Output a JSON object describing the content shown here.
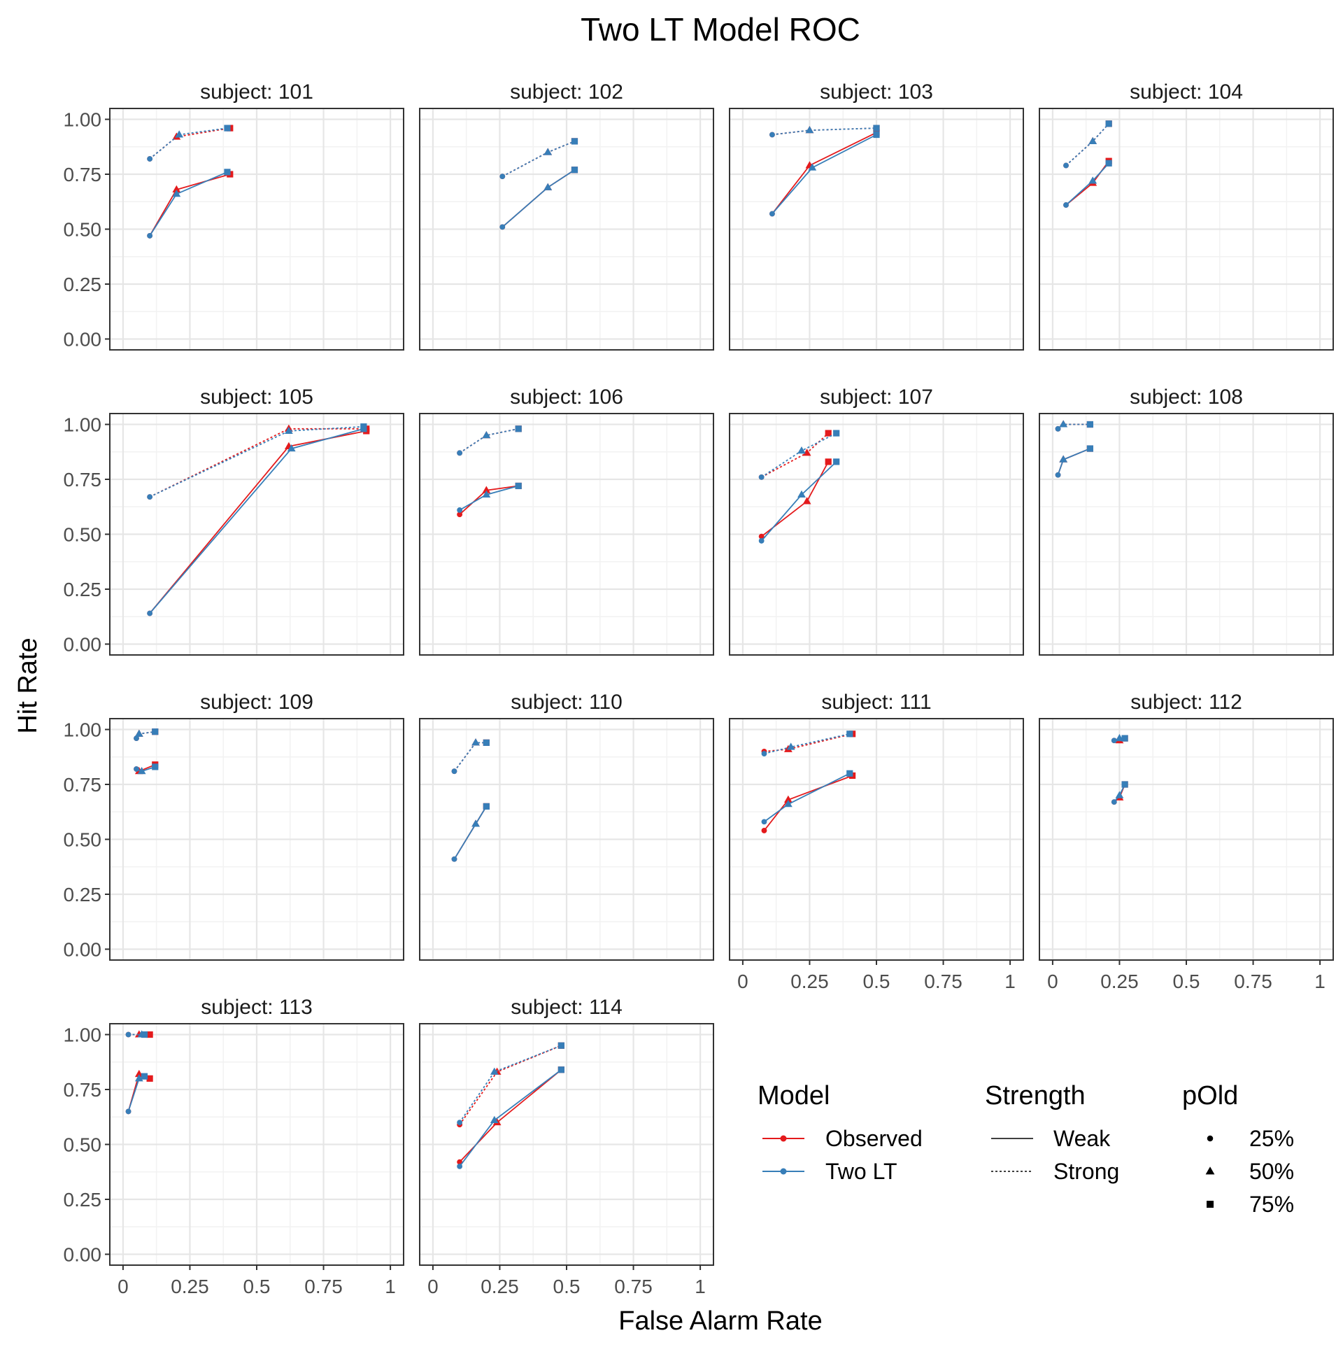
{
  "title": "Two LT Model ROC",
  "xlabel": "False Alarm Rate",
  "ylabel": "Hit Rate",
  "colors": {
    "observed": "#E41A1C",
    "two_lt": "#377EB8"
  },
  "facet_prefix": "subject: ",
  "legend": {
    "model": {
      "title": "Model",
      "items": [
        "Observed",
        "Two LT"
      ]
    },
    "strength": {
      "title": "Strength",
      "items": [
        "Weak",
        "Strong"
      ]
    },
    "pold": {
      "title": "pOld",
      "items": [
        "25%",
        "50%",
        "75%"
      ]
    }
  },
  "chart_data": {
    "type": "line",
    "x_ticks": [
      "0",
      "0.25",
      "0.5",
      "0.75",
      "1"
    ],
    "y_ticks": [
      "0.00",
      "0.25",
      "0.50",
      "0.75",
      "1.00"
    ],
    "xlim": [
      0,
      1
    ],
    "ylim": [
      0,
      1
    ],
    "grid": true,
    "legend_position": "bottom-right",
    "series_order": [
      "Observed",
      "Two LT"
    ],
    "strength_order": [
      "Weak",
      "Strong"
    ],
    "pold_levels": [
      "25%",
      "50%",
      "75%"
    ],
    "facets": [
      {
        "subject": "101",
        "Observed": {
          "Weak": [
            [
              0.1,
              0.47
            ],
            [
              0.2,
              0.68
            ],
            [
              0.4,
              0.75
            ]
          ],
          "Strong": [
            [
              0.1,
              0.82
            ],
            [
              0.2,
              0.92
            ],
            [
              0.4,
              0.96
            ]
          ]
        },
        "Two LT": {
          "Weak": [
            [
              0.1,
              0.47
            ],
            [
              0.2,
              0.66
            ],
            [
              0.39,
              0.76
            ]
          ],
          "Strong": [
            [
              0.1,
              0.82
            ],
            [
              0.21,
              0.93
            ],
            [
              0.39,
              0.96
            ]
          ]
        }
      },
      {
        "subject": "102",
        "Observed": {
          "Weak": [
            [
              0.26,
              0.51
            ],
            [
              0.43,
              0.69
            ],
            [
              0.53,
              0.77
            ]
          ],
          "Strong": [
            [
              0.26,
              0.74
            ],
            [
              0.43,
              0.85
            ],
            [
              0.53,
              0.9
            ]
          ]
        },
        "Two LT": {
          "Weak": [
            [
              0.26,
              0.51
            ],
            [
              0.43,
              0.69
            ],
            [
              0.53,
              0.77
            ]
          ],
          "Strong": [
            [
              0.26,
              0.74
            ],
            [
              0.43,
              0.85
            ],
            [
              0.53,
              0.9
            ]
          ]
        }
      },
      {
        "subject": "103",
        "Observed": {
          "Weak": [
            [
              0.11,
              0.57
            ],
            [
              0.25,
              0.79
            ],
            [
              0.5,
              0.94
            ]
          ],
          "Strong": [
            [
              0.11,
              0.93
            ],
            [
              0.25,
              0.95
            ],
            [
              0.5,
              0.96
            ]
          ]
        },
        "Two LT": {
          "Weak": [
            [
              0.11,
              0.57
            ],
            [
              0.26,
              0.78
            ],
            [
              0.5,
              0.93
            ]
          ],
          "Strong": [
            [
              0.11,
              0.93
            ],
            [
              0.25,
              0.95
            ],
            [
              0.5,
              0.96
            ]
          ]
        }
      },
      {
        "subject": "104",
        "Observed": {
          "Weak": [
            [
              0.05,
              0.61
            ],
            [
              0.15,
              0.71
            ],
            [
              0.21,
              0.81
            ]
          ],
          "Strong": [
            [
              0.05,
              0.79
            ],
            [
              0.15,
              0.9
            ],
            [
              0.21,
              0.98
            ]
          ]
        },
        "Two LT": {
          "Weak": [
            [
              0.05,
              0.61
            ],
            [
              0.15,
              0.72
            ],
            [
              0.21,
              0.8
            ]
          ],
          "Strong": [
            [
              0.05,
              0.79
            ],
            [
              0.15,
              0.9
            ],
            [
              0.21,
              0.98
            ]
          ]
        }
      },
      {
        "subject": "105",
        "Observed": {
          "Weak": [
            [
              0.1,
              0.14
            ],
            [
              0.62,
              0.9
            ],
            [
              0.91,
              0.97
            ]
          ],
          "Strong": [
            [
              0.1,
              0.67
            ],
            [
              0.62,
              0.98
            ],
            [
              0.91,
              0.98
            ]
          ]
        },
        "Two LT": {
          "Weak": [
            [
              0.1,
              0.14
            ],
            [
              0.63,
              0.89
            ],
            [
              0.9,
              0.98
            ]
          ],
          "Strong": [
            [
              0.1,
              0.67
            ],
            [
              0.62,
              0.97
            ],
            [
              0.9,
              0.99
            ]
          ]
        }
      },
      {
        "subject": "106",
        "Observed": {
          "Weak": [
            [
              0.1,
              0.59
            ],
            [
              0.2,
              0.7
            ],
            [
              0.32,
              0.72
            ]
          ],
          "Strong": [
            [
              0.1,
              0.87
            ],
            [
              0.2,
              0.95
            ],
            [
              0.32,
              0.98
            ]
          ]
        },
        "Two LT": {
          "Weak": [
            [
              0.1,
              0.61
            ],
            [
              0.2,
              0.68
            ],
            [
              0.32,
              0.72
            ]
          ],
          "Strong": [
            [
              0.1,
              0.87
            ],
            [
              0.2,
              0.95
            ],
            [
              0.32,
              0.98
            ]
          ]
        }
      },
      {
        "subject": "107",
        "Observed": {
          "Weak": [
            [
              0.07,
              0.49
            ],
            [
              0.24,
              0.65
            ],
            [
              0.32,
              0.83
            ]
          ],
          "Strong": [
            [
              0.07,
              0.76
            ],
            [
              0.24,
              0.87
            ],
            [
              0.32,
              0.96
            ]
          ]
        },
        "Two LT": {
          "Weak": [
            [
              0.07,
              0.47
            ],
            [
              0.22,
              0.68
            ],
            [
              0.35,
              0.83
            ]
          ],
          "Strong": [
            [
              0.07,
              0.76
            ],
            [
              0.22,
              0.88
            ],
            [
              0.35,
              0.96
            ]
          ]
        }
      },
      {
        "subject": "108",
        "Observed": {
          "Weak": [
            [
              0.02,
              0.77
            ],
            [
              0.04,
              0.84
            ],
            [
              0.14,
              0.89
            ]
          ],
          "Strong": [
            [
              0.02,
              0.98
            ],
            [
              0.04,
              1.0
            ],
            [
              0.14,
              1.0
            ]
          ]
        },
        "Two LT": {
          "Weak": [
            [
              0.02,
              0.77
            ],
            [
              0.04,
              0.84
            ],
            [
              0.14,
              0.89
            ]
          ],
          "Strong": [
            [
              0.02,
              0.98
            ],
            [
              0.04,
              1.0
            ],
            [
              0.14,
              1.0
            ]
          ]
        }
      },
      {
        "subject": "109",
        "Observed": {
          "Weak": [
            [
              0.05,
              0.82
            ],
            [
              0.06,
              0.81
            ],
            [
              0.12,
              0.84
            ]
          ],
          "Strong": [
            [
              0.05,
              0.96
            ],
            [
              0.06,
              0.98
            ],
            [
              0.12,
              0.99
            ]
          ]
        },
        "Two LT": {
          "Weak": [
            [
              0.05,
              0.82
            ],
            [
              0.07,
              0.81
            ],
            [
              0.12,
              0.83
            ]
          ],
          "Strong": [
            [
              0.05,
              0.96
            ],
            [
              0.06,
              0.98
            ],
            [
              0.12,
              0.99
            ]
          ]
        }
      },
      {
        "subject": "110",
        "Observed": {
          "Weak": [
            [
              0.08,
              0.41
            ],
            [
              0.16,
              0.57
            ],
            [
              0.2,
              0.65
            ]
          ],
          "Strong": [
            [
              0.08,
              0.81
            ],
            [
              0.16,
              0.94
            ],
            [
              0.2,
              0.94
            ]
          ]
        },
        "Two LT": {
          "Weak": [
            [
              0.08,
              0.41
            ],
            [
              0.16,
              0.57
            ],
            [
              0.2,
              0.65
            ]
          ],
          "Strong": [
            [
              0.08,
              0.81
            ],
            [
              0.16,
              0.94
            ],
            [
              0.2,
              0.94
            ]
          ]
        }
      },
      {
        "subject": "111",
        "Observed": {
          "Weak": [
            [
              0.08,
              0.54
            ],
            [
              0.17,
              0.68
            ],
            [
              0.41,
              0.79
            ]
          ],
          "Strong": [
            [
              0.08,
              0.9
            ],
            [
              0.17,
              0.91
            ],
            [
              0.41,
              0.98
            ]
          ]
        },
        "Two LT": {
          "Weak": [
            [
              0.08,
              0.58
            ],
            [
              0.17,
              0.66
            ],
            [
              0.4,
              0.8
            ]
          ],
          "Strong": [
            [
              0.08,
              0.89
            ],
            [
              0.18,
              0.92
            ],
            [
              0.4,
              0.98
            ]
          ]
        }
      },
      {
        "subject": "112",
        "Observed": {
          "Weak": [
            [
              0.23,
              0.67
            ],
            [
              0.25,
              0.69
            ],
            [
              0.27,
              0.75
            ]
          ],
          "Strong": [
            [
              0.23,
              0.95
            ],
            [
              0.25,
              0.95
            ],
            [
              0.27,
              0.96
            ]
          ]
        },
        "Two LT": {
          "Weak": [
            [
              0.23,
              0.67
            ],
            [
              0.25,
              0.7
            ],
            [
              0.27,
              0.75
            ]
          ],
          "Strong": [
            [
              0.23,
              0.95
            ],
            [
              0.25,
              0.96
            ],
            [
              0.27,
              0.96
            ]
          ]
        }
      },
      {
        "subject": "113",
        "Observed": {
          "Weak": [
            [
              0.02,
              0.65
            ],
            [
              0.06,
              0.82
            ],
            [
              0.1,
              0.8
            ]
          ],
          "Strong": [
            [
              0.02,
              1.0
            ],
            [
              0.06,
              1.0
            ],
            [
              0.1,
              1.0
            ]
          ]
        },
        "Two LT": {
          "Weak": [
            [
              0.02,
              0.65
            ],
            [
              0.06,
              0.8
            ],
            [
              0.08,
              0.81
            ]
          ],
          "Strong": [
            [
              0.02,
              1.0
            ],
            [
              0.07,
              1.0
            ],
            [
              0.08,
              1.0
            ]
          ]
        }
      },
      {
        "subject": "114",
        "Observed": {
          "Weak": [
            [
              0.1,
              0.42
            ],
            [
              0.24,
              0.6
            ],
            [
              0.48,
              0.84
            ]
          ],
          "Strong": [
            [
              0.1,
              0.59
            ],
            [
              0.24,
              0.83
            ],
            [
              0.48,
              0.95
            ]
          ]
        },
        "Two LT": {
          "Weak": [
            [
              0.1,
              0.4
            ],
            [
              0.23,
              0.61
            ],
            [
              0.48,
              0.84
            ]
          ],
          "Strong": [
            [
              0.1,
              0.6
            ],
            [
              0.23,
              0.83
            ],
            [
              0.48,
              0.95
            ]
          ]
        }
      }
    ]
  }
}
